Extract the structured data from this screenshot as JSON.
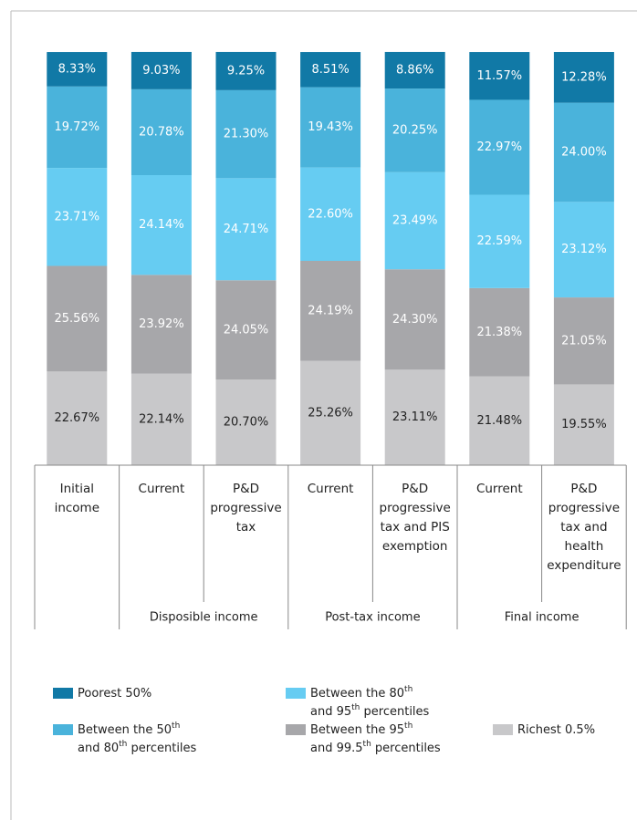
{
  "chart_data": {
    "type": "stacked_bar",
    "categories": [
      "Initial income",
      "Current",
      "P&D progressive tax",
      "Current",
      "P&D progressive tax and PIS exemption",
      "Current",
      "P&D progressive tax and health expenditure"
    ],
    "category_groups": [
      null,
      "Disposible income",
      "Disposible income",
      "Post-tax income",
      "Post-tax income",
      "Final income",
      "Final income"
    ],
    "ylim": [
      0,
      100
    ],
    "series": [
      {
        "name": "Richest 0.5%",
        "color": "#c8c8ca",
        "label_color": "#222222",
        "values": [
          22.67,
          22.14,
          20.7,
          25.26,
          23.11,
          21.48,
          19.55
        ],
        "value_labels": [
          "22.67%",
          "22.14%",
          "20.70%",
          "25.26%",
          "23.11%",
          "21.48%",
          "19.55%"
        ]
      },
      {
        "name": "Between the 95th and 99.5th percentiles",
        "color": "#a7a7aa",
        "label_color": "#ffffff",
        "values": [
          25.56,
          23.92,
          24.05,
          24.19,
          24.3,
          21.38,
          21.05
        ],
        "value_labels": [
          "25.56%",
          "23.92%",
          "24.05%",
          "24.19%",
          "24.30%",
          "21.38%",
          "21.05%"
        ]
      },
      {
        "name": "Between the 80th and 95th percentiles",
        "color": "#66ccf2",
        "label_color": "#ffffff",
        "values": [
          23.71,
          24.14,
          24.71,
          22.6,
          23.49,
          22.59,
          23.12
        ],
        "value_labels": [
          "23.71%",
          "24.14%",
          "24.71%",
          "22.60%",
          "23.49%",
          "22.59%",
          "23.12%"
        ]
      },
      {
        "name": "Between the 50th and 80th percentiles",
        "color": "#4ab3db",
        "label_color": "#ffffff",
        "values": [
          19.72,
          20.78,
          21.3,
          19.43,
          20.25,
          22.97,
          24.0
        ],
        "value_labels": [
          "19.72%",
          "20.78%",
          "21.30%",
          "19.43%",
          "20.25%",
          "22.97%",
          "24.00%"
        ]
      },
      {
        "name": "Poorest 50%",
        "color": "#1179a6",
        "label_color": "#ffffff",
        "values": [
          8.33,
          9.03,
          9.25,
          8.51,
          8.86,
          11.57,
          12.28
        ],
        "value_labels": [
          "8.33%",
          "9.03%",
          "9.25%",
          "8.51%",
          "8.86%",
          "11.57%",
          "12.28%"
        ]
      }
    ]
  }
}
